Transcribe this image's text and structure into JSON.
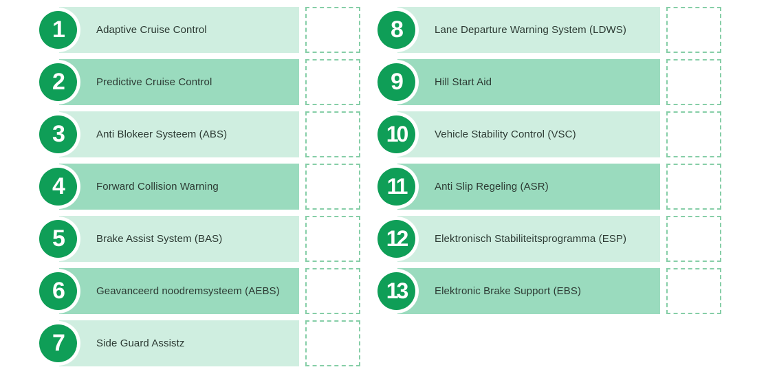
{
  "left_column": [
    {
      "number": "1",
      "label": "Adaptive Cruise Control"
    },
    {
      "number": "2",
      "label": "Predictive Cruise Control"
    },
    {
      "number": "3",
      "label": "Anti Blokeer Systeem (ABS)"
    },
    {
      "number": "4",
      "label": "Forward Collision Warning"
    },
    {
      "number": "5",
      "label": "Brake Assist System (BAS)"
    },
    {
      "number": "6",
      "label": "Geavanceerd noodremsysteem (AEBS)"
    },
    {
      "number": "7",
      "label": "Side Guard Assistz"
    }
  ],
  "right_column": [
    {
      "number": "8",
      "label": "Lane Departure Warning System (LDWS)"
    },
    {
      "number": "9",
      "label": "Hill Start Aid"
    },
    {
      "number": "10",
      "label": "Vehicle Stability Control (VSC)"
    },
    {
      "number": "11",
      "label": "Anti Slip Regeling (ASR)"
    },
    {
      "number": "12",
      "label": "Elektronisch Stabiliteitsprogramma (ESP)"
    },
    {
      "number": "13",
      "label": "Elektronic Brake Support (EBS)"
    }
  ],
  "colors": {
    "badge": "#0f9e57",
    "bar_light": "#cfeee0",
    "bar_dark": "#9adbbe",
    "checkbox_border": "#86cea7"
  }
}
